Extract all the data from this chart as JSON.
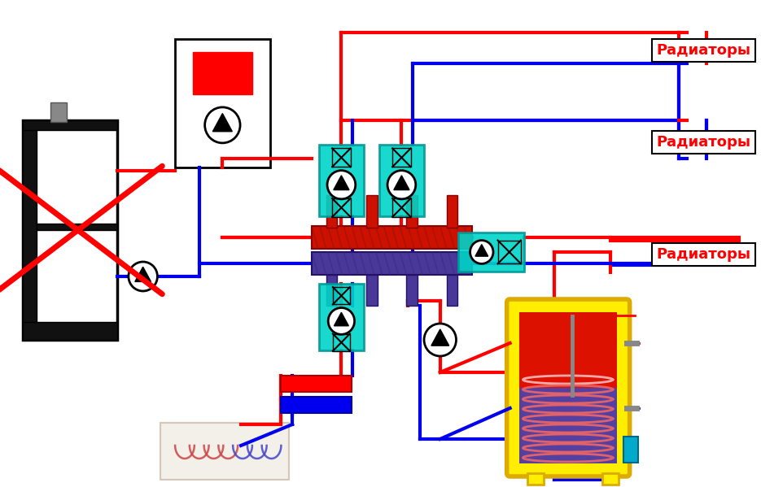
{
  "bg_color": "#ffffff",
  "red": "#ff0000",
  "blue": "#0000ee",
  "dark_red": "#cc0000",
  "cyan": "#00d4c8",
  "purple": "#4a3898",
  "yellow": "#ffee00",
  "labels": [
    "Радиаторы",
    "Радиаторы",
    "Радиаторы"
  ],
  "lw_pipe": 3.0,
  "lw_thick": 4.0
}
